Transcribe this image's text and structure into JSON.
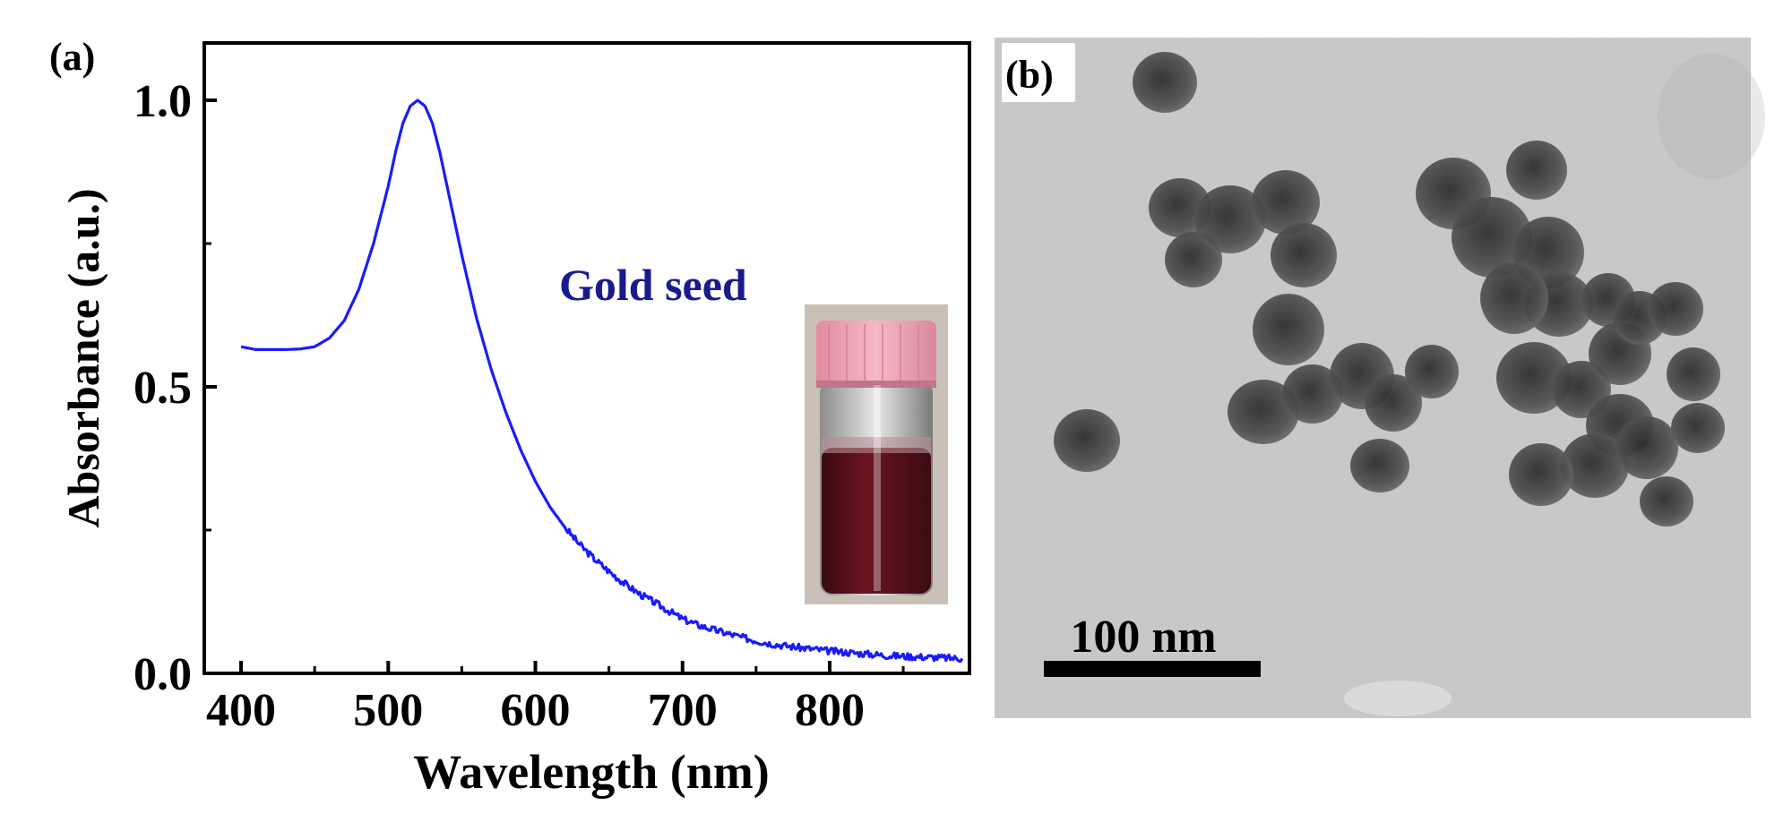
{
  "panel_a": {
    "label": "(a)"
  },
  "panel_b": {
    "label": "(b)",
    "scale_bar_label": "100 nm"
  },
  "chart_data": {
    "type": "line",
    "title": "",
    "xlabel": "Wavelength (nm)",
    "ylabel": "Absorbance (a.u.)",
    "xlim": [
      375,
      895
    ],
    "ylim": [
      0.0,
      1.1
    ],
    "xticks": [
      400,
      500,
      600,
      700,
      800
    ],
    "xtick_labels": [
      "400",
      "500",
      "600",
      "700",
      "800"
    ],
    "yticks": [
      0.0,
      0.5,
      1.0
    ],
    "ytick_labels": [
      "0.0",
      "0.5",
      "1.0"
    ],
    "annotation": "Gold seed",
    "series": [
      {
        "name": "Gold seed",
        "color": "#1a1aff",
        "x": [
          400,
          410,
          420,
          430,
          440,
          450,
          460,
          470,
          480,
          490,
          500,
          505,
          510,
          515,
          520,
          525,
          530,
          535,
          540,
          545,
          550,
          560,
          570,
          580,
          590,
          600,
          610,
          620,
          630,
          640,
          650,
          660,
          670,
          680,
          690,
          700,
          710,
          720,
          730,
          740,
          750,
          760,
          770,
          780,
          790,
          800,
          810,
          820,
          830,
          840,
          850,
          860,
          870,
          880,
          890
        ],
        "y": [
          0.57,
          0.565,
          0.565,
          0.565,
          0.566,
          0.57,
          0.585,
          0.615,
          0.67,
          0.75,
          0.85,
          0.91,
          0.96,
          0.99,
          1.0,
          0.99,
          0.96,
          0.91,
          0.85,
          0.79,
          0.73,
          0.62,
          0.53,
          0.455,
          0.39,
          0.335,
          0.29,
          0.255,
          0.225,
          0.2,
          0.178,
          0.158,
          0.14,
          0.125,
          0.11,
          0.095,
          0.085,
          0.077,
          0.07,
          0.063,
          0.057,
          0.052,
          0.048,
          0.045,
          0.042,
          0.039,
          0.037,
          0.035,
          0.033,
          0.031,
          0.03,
          0.029,
          0.028,
          0.027,
          0.026
        ]
      }
    ]
  },
  "colors": {
    "curve": "#1a1aff",
    "annotation": "#1a1a8f",
    "vial_cap": "#f2a4b6",
    "vial_liquid": "#5a1018",
    "tem_background": "#c9c9c9",
    "particle": "#4a4a4a"
  }
}
